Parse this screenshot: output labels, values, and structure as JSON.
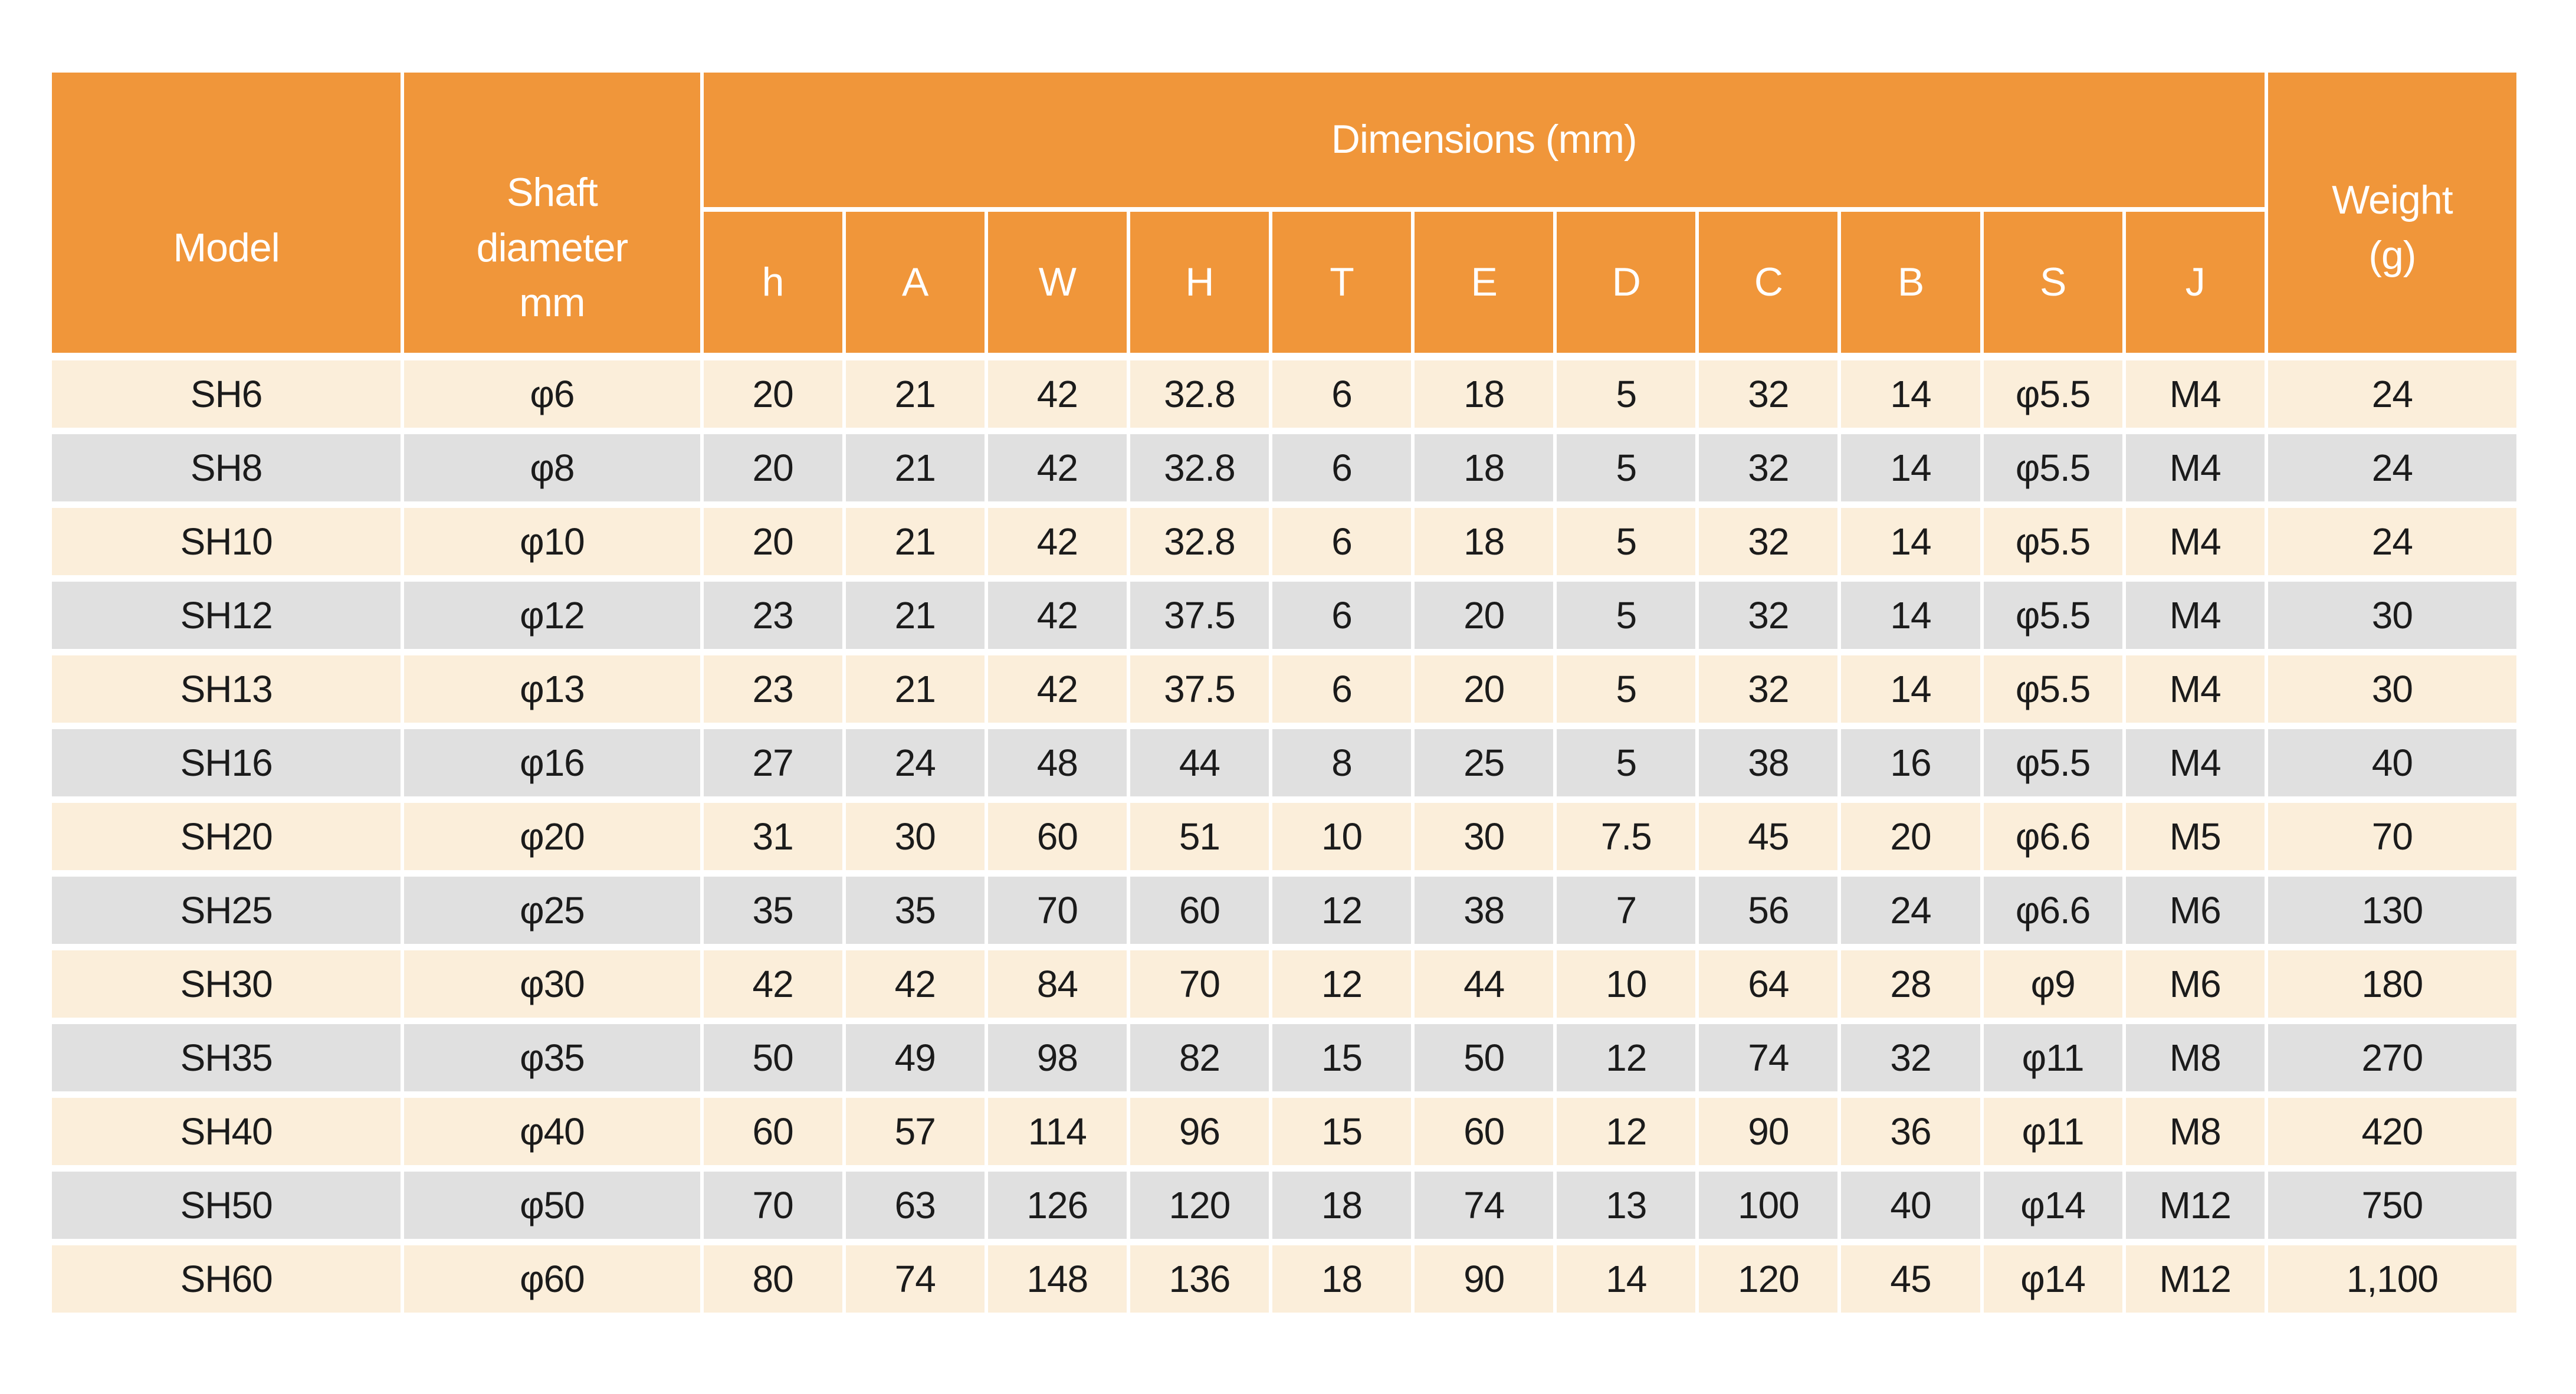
{
  "colors": {
    "header_bg": "#F0963A",
    "row_light_bg": "#FBEEDA",
    "row_gray_bg": "#E0E0E0",
    "grid_line": "#FFFFFF",
    "header_text": "#FFFFFF",
    "data_text": "#1B1B1B"
  },
  "table": {
    "header": {
      "model_label": "Model",
      "shaft_label": "Shaft diameter mm",
      "dimensions_label": "Dimensions (mm)",
      "dim_columns": [
        "h",
        "A",
        "W",
        "H",
        "T",
        "E",
        "D",
        "C",
        "B",
        "S",
        "J"
      ],
      "weight_label": "Weight (g)"
    },
    "rows": [
      {
        "model": "SH6",
        "shaft_diameter": "φ6",
        "dims": [
          "20",
          "21",
          "42",
          "32.8",
          "6",
          "18",
          "5",
          "32",
          "14",
          "φ5.5",
          "M4"
        ],
        "weight": "24"
      },
      {
        "model": "SH8",
        "shaft_diameter": "φ8",
        "dims": [
          "20",
          "21",
          "42",
          "32.8",
          "6",
          "18",
          "5",
          "32",
          "14",
          "φ5.5",
          "M4"
        ],
        "weight": "24"
      },
      {
        "model": "SH10",
        "shaft_diameter": "φ10",
        "dims": [
          "20",
          "21",
          "42",
          "32.8",
          "6",
          "18",
          "5",
          "32",
          "14",
          "φ5.5",
          "M4"
        ],
        "weight": "24"
      },
      {
        "model": "SH12",
        "shaft_diameter": "φ12",
        "dims": [
          "23",
          "21",
          "42",
          "37.5",
          "6",
          "20",
          "5",
          "32",
          "14",
          "φ5.5",
          "M4"
        ],
        "weight": "30"
      },
      {
        "model": "SH13",
        "shaft_diameter": "φ13",
        "dims": [
          "23",
          "21",
          "42",
          "37.5",
          "6",
          "20",
          "5",
          "32",
          "14",
          "φ5.5",
          "M4"
        ],
        "weight": "30"
      },
      {
        "model": "SH16",
        "shaft_diameter": "φ16",
        "dims": [
          "27",
          "24",
          "48",
          "44",
          "8",
          "25",
          "5",
          "38",
          "16",
          "φ5.5",
          "M4"
        ],
        "weight": "40"
      },
      {
        "model": "SH20",
        "shaft_diameter": "φ20",
        "dims": [
          "31",
          "30",
          "60",
          "51",
          "10",
          "30",
          "7.5",
          "45",
          "20",
          "φ6.6",
          "M5"
        ],
        "weight": "70"
      },
      {
        "model": "SH25",
        "shaft_diameter": "φ25",
        "dims": [
          "35",
          "35",
          "70",
          "60",
          "12",
          "38",
          "7",
          "56",
          "24",
          "φ6.6",
          "M6"
        ],
        "weight": "130"
      },
      {
        "model": "SH30",
        "shaft_diameter": "φ30",
        "dims": [
          "42",
          "42",
          "84",
          "70",
          "12",
          "44",
          "10",
          "64",
          "28",
          "φ9",
          "M6"
        ],
        "weight": "180"
      },
      {
        "model": "SH35",
        "shaft_diameter": "φ35",
        "dims": [
          "50",
          "49",
          "98",
          "82",
          "15",
          "50",
          "12",
          "74",
          "32",
          "φ11",
          "M8"
        ],
        "weight": "270"
      },
      {
        "model": "SH40",
        "shaft_diameter": "φ40",
        "dims": [
          "60",
          "57",
          "114",
          "96",
          "15",
          "60",
          "12",
          "90",
          "36",
          "φ11",
          "M8"
        ],
        "weight": "420"
      },
      {
        "model": "SH50",
        "shaft_diameter": "φ50",
        "dims": [
          "70",
          "63",
          "126",
          "120",
          "18",
          "74",
          "13",
          "100",
          "40",
          "φ14",
          "M12"
        ],
        "weight": "750"
      },
      {
        "model": "SH60",
        "shaft_diameter": "φ60",
        "dims": [
          "80",
          "74",
          "148",
          "136",
          "18",
          "90",
          "14",
          "120",
          "45",
          "φ14",
          "M12"
        ],
        "weight": "1,100"
      }
    ]
  }
}
